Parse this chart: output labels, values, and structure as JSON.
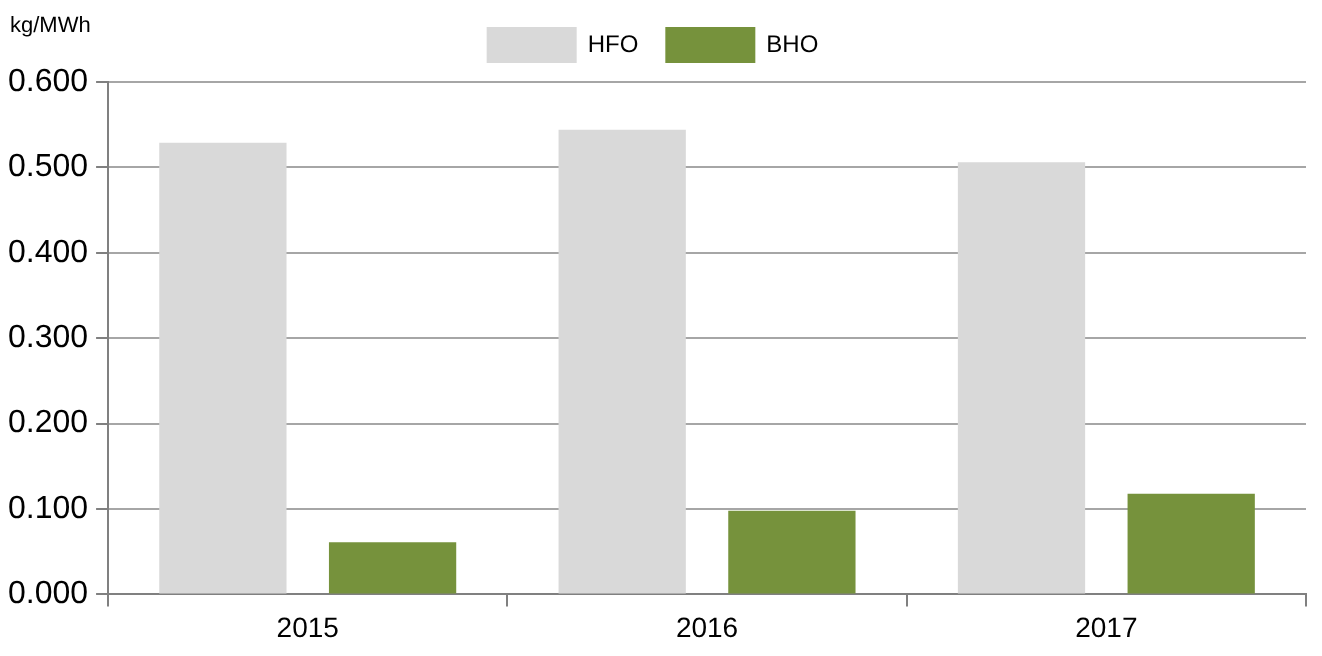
{
  "chart_data": {
    "type": "bar",
    "ylabel": "kg/MWh",
    "categories": [
      "2015",
      "2016",
      "2017"
    ],
    "series": [
      {
        "name": "HFO",
        "color": "#d9d9d9",
        "values": [
          0.529,
          0.544,
          0.506
        ]
      },
      {
        "name": "BHO",
        "color": "#76923c",
        "values": [
          0.061,
          0.098,
          0.118
        ]
      }
    ],
    "ylim": [
      0,
      0.6
    ],
    "yticks": [
      {
        "value": 0,
        "label": "0.000"
      },
      {
        "value": 0.1,
        "label": "0.100"
      },
      {
        "value": 0.2,
        "label": "0.200"
      },
      {
        "value": 0.3,
        "label": "0.300"
      },
      {
        "value": 0.4,
        "label": "0.400"
      },
      {
        "value": 0.5,
        "label": "0.500"
      },
      {
        "value": 0.6,
        "label": "0.600"
      }
    ],
    "grid": "y",
    "legend": "top"
  }
}
